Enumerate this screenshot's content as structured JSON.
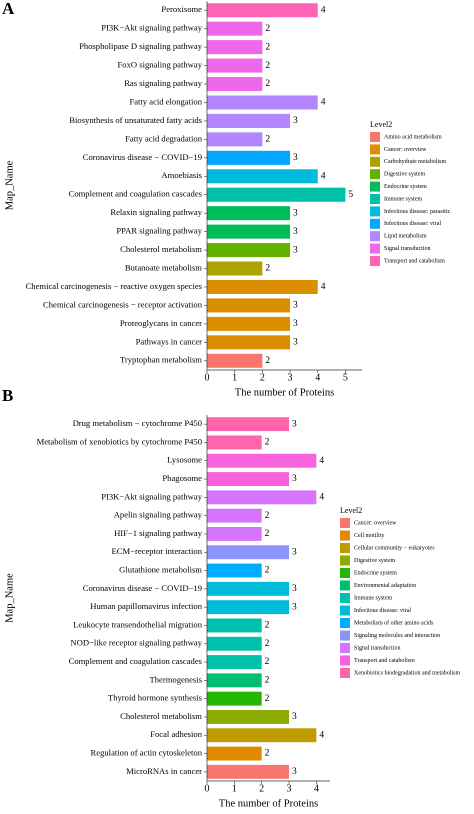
{
  "chart_data": [
    {
      "type": "bar",
      "orientation": "horizontal",
      "panel_label": "A",
      "categories": [
        "Peroxisome",
        "PI3K−Akt signaling pathway",
        "Phospholipase D signaling pathway",
        "FoxO signaling pathway",
        "Ras signaling pathway",
        "Fatty acid elongation",
        "Biosynthesis of unsaturated fatty acids",
        "Fatty acid degradation",
        "Coronavirus disease − COVID−19",
        "Amoebiasis",
        "Complement and coagulation cascades",
        "Relaxin signaling pathway",
        "PPAR signaling pathway",
        "Cholesterol metabolism",
        "Butanoate metabolism",
        "Chemical carcinogenesis − reactive oxygen species",
        "Chemical carcinogenesis − receptor activation",
        "Proteoglycans in cancer",
        "Pathways in cancer",
        "Tryptophan metabolism"
      ],
      "values": [
        4,
        2,
        2,
        2,
        2,
        4,
        3,
        2,
        3,
        4,
        5,
        3,
        3,
        3,
        2,
        4,
        3,
        3,
        3,
        2
      ],
      "bar_colors": [
        "#FF63B6",
        "#EF67EB",
        "#EF67EB",
        "#EF67EB",
        "#EF67EB",
        "#B385FF",
        "#B385FF",
        "#B385FF",
        "#00A6FF",
        "#00BADE",
        "#00C1A7",
        "#00BD5C",
        "#00BD5C",
        "#64B200",
        "#AEA200",
        "#DB8E00",
        "#DB8E00",
        "#DB8E00",
        "#DB8E00",
        "#F8766D"
      ],
      "xlim": [
        0,
        5.6
      ],
      "xticks": [
        0,
        1,
        2,
        3,
        4,
        5
      ],
      "x_label": "The number of Proteins",
      "y_label": "Map_Name",
      "legend_title": "Level2",
      "legend": [
        {
          "name": "Amino acid metabolism",
          "color": "#F8766D"
        },
        {
          "name": "Cancer: overview",
          "color": "#DB8E00"
        },
        {
          "name": "Carbohydrate metabolism",
          "color": "#AEA200"
        },
        {
          "name": "Digestive system",
          "color": "#64B200"
        },
        {
          "name": "Endocrine system",
          "color": "#00BD5C"
        },
        {
          "name": "Immune system",
          "color": "#00C1A7"
        },
        {
          "name": "Infectious disease: parasitic",
          "color": "#00BADE"
        },
        {
          "name": "Infectious disease: viral",
          "color": "#00A6FF"
        },
        {
          "name": "Lipid metabolism",
          "color": "#B385FF"
        },
        {
          "name": "Signal transduction",
          "color": "#EF67EB"
        },
        {
          "name": "Transport and catabolism",
          "color": "#FF63B6"
        }
      ]
    },
    {
      "type": "bar",
      "orientation": "horizontal",
      "panel_label": "B",
      "categories": [
        "Drug metabolism − cytochrome P450",
        "Metabolism of xenobiotics by cytochrome P450",
        "Lysosome",
        "Phagosome",
        "PI3K−Akt signaling pathway",
        "Apelin signaling pathway",
        "HIF−1 signaling pathway",
        "ECM−receptor interaction",
        "Glutathione metabolism",
        "Coronavirus disease − COVID−19",
        "Human papillomavirus infection",
        "Leukocyte transendothelial migration",
        "NOD−like receptor signaling pathway",
        "Complement and coagulation cascades",
        "Thermogenesis",
        "Thyroid hormone synthesis",
        "Cholesterol metabolism",
        "Focal adhesion",
        "Regulation of actin cytoskeleton",
        "MicroRNAs in cancer"
      ],
      "values": [
        3,
        2,
        4,
        3,
        4,
        2,
        2,
        3,
        2,
        3,
        3,
        2,
        2,
        2,
        2,
        2,
        3,
        4,
        2,
        3
      ],
      "bar_colors": [
        "#FF65AC",
        "#FF65AC",
        "#F962DD",
        "#F962DD",
        "#D575FE",
        "#D575FE",
        "#D575FE",
        "#8B93FF",
        "#00ACFC",
        "#00BBDA",
        "#00BBDA",
        "#00C1AB",
        "#00C1AB",
        "#00C1AB",
        "#00BE70",
        "#24B700",
        "#8CAB00",
        "#BE9C00",
        "#E18A00",
        "#F8766D"
      ],
      "xlim": [
        0,
        4.5
      ],
      "xticks": [
        0,
        1,
        2,
        3,
        4
      ],
      "x_label": "The number of Proteins",
      "y_label": "Map_Name",
      "legend_title": "Level2",
      "legend": [
        {
          "name": "Cancer: overview",
          "color": "#F8766D"
        },
        {
          "name": "Cell motility",
          "color": "#E18A00"
        },
        {
          "name": "Cellular community − eukaryotes",
          "color": "#BE9C00"
        },
        {
          "name": "Digestive system",
          "color": "#8CAB00"
        },
        {
          "name": "Endocrine system",
          "color": "#24B700"
        },
        {
          "name": "Environmental adaptation",
          "color": "#00BE70"
        },
        {
          "name": "Immune system",
          "color": "#00C1AB"
        },
        {
          "name": "Infectious disease: viral",
          "color": "#00BBDA"
        },
        {
          "name": "Metabolism of other amino acids",
          "color": "#00ACFC"
        },
        {
          "name": "Signaling molecules and interaction",
          "color": "#8B93FF"
        },
        {
          "name": "Signal transduction",
          "color": "#D575FE"
        },
        {
          "name": "Transport and catabolism",
          "color": "#F962DD"
        },
        {
          "name": "Xenobiotics biodegradation and metabolism",
          "color": "#FF65AC"
        }
      ]
    }
  ]
}
